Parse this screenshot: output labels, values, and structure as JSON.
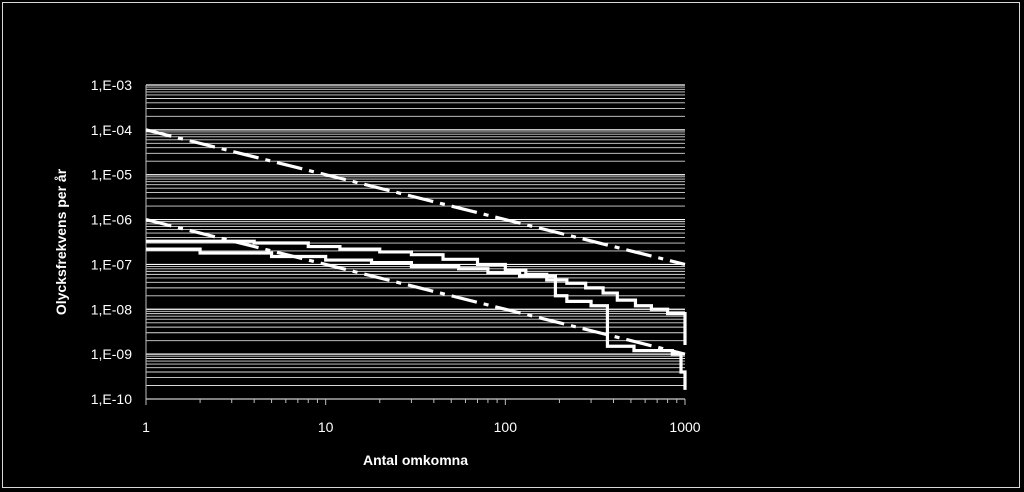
{
  "chart_data": {
    "type": "line",
    "title": "",
    "xlabel": "Antal omkomna",
    "ylabel": "Olycksfrekvens per år",
    "x_scale": "log",
    "y_scale": "log",
    "xlim": [
      1,
      1000
    ],
    "ylim": [
      1e-10,
      0.001
    ],
    "x_ticks": [
      1,
      10,
      100,
      1000
    ],
    "x_tick_labels": [
      "1",
      "10",
      "100",
      "1000"
    ],
    "y_ticks": [
      0.001,
      0.0001,
      1e-05,
      1e-06,
      1e-07,
      1e-08,
      1e-09,
      1e-10
    ],
    "y_tick_labels": [
      "1,E-03",
      "1,E-04",
      "1,E-05",
      "1,E-06",
      "1,E-07",
      "1,E-08",
      "1,E-09",
      "1,E-10"
    ],
    "grid": "minor horizontal lines",
    "legend": "none",
    "colors": {
      "background": "#000000",
      "lines": "#ffffff",
      "grid": "#ffffff",
      "text": "#ffffff"
    },
    "series": [
      {
        "style": "dashed",
        "x": [
          1,
          1000
        ],
        "y": [
          0.0001,
          1e-07
        ]
      },
      {
        "style": "dashed",
        "x": [
          1,
          1000
        ],
        "y": [
          1e-06,
          1e-09
        ]
      },
      {
        "style": "step",
        "x": [
          1,
          4,
          8,
          12,
          20,
          30,
          45,
          70,
          100,
          130,
          170,
          220,
          280,
          350,
          420,
          530,
          650,
          800,
          1000,
          1000
        ],
        "y": [
          3.3e-07,
          3e-07,
          2.5e-07,
          2.2e-07,
          1.9e-07,
          1.65e-07,
          1.3e-07,
          1e-07,
          7.5e-08,
          6e-08,
          4.5e-08,
          3.8e-08,
          3e-08,
          2.3e-08,
          1.6e-08,
          1.2e-08,
          1e-08,
          8e-09,
          7.5e-09,
          1.6e-09
        ]
      },
      {
        "style": "step",
        "x": [
          1,
          2,
          5,
          10,
          18,
          30,
          55,
          80,
          120,
          190,
          190,
          220,
          300,
          370,
          370,
          520,
          850,
          950,
          1000,
          1000
        ],
        "y": [
          2.2e-07,
          1.8e-07,
          1.5e-07,
          1.25e-07,
          1.1e-07,
          9e-08,
          8e-08,
          6.5e-08,
          5.5e-08,
          5e-08,
          2e-08,
          1.5e-08,
          1.2e-08,
          1e-08,
          1.5e-09,
          1.2e-09,
          1e-09,
          4e-10,
          2e-10,
          1.6e-10
        ]
      }
    ]
  }
}
